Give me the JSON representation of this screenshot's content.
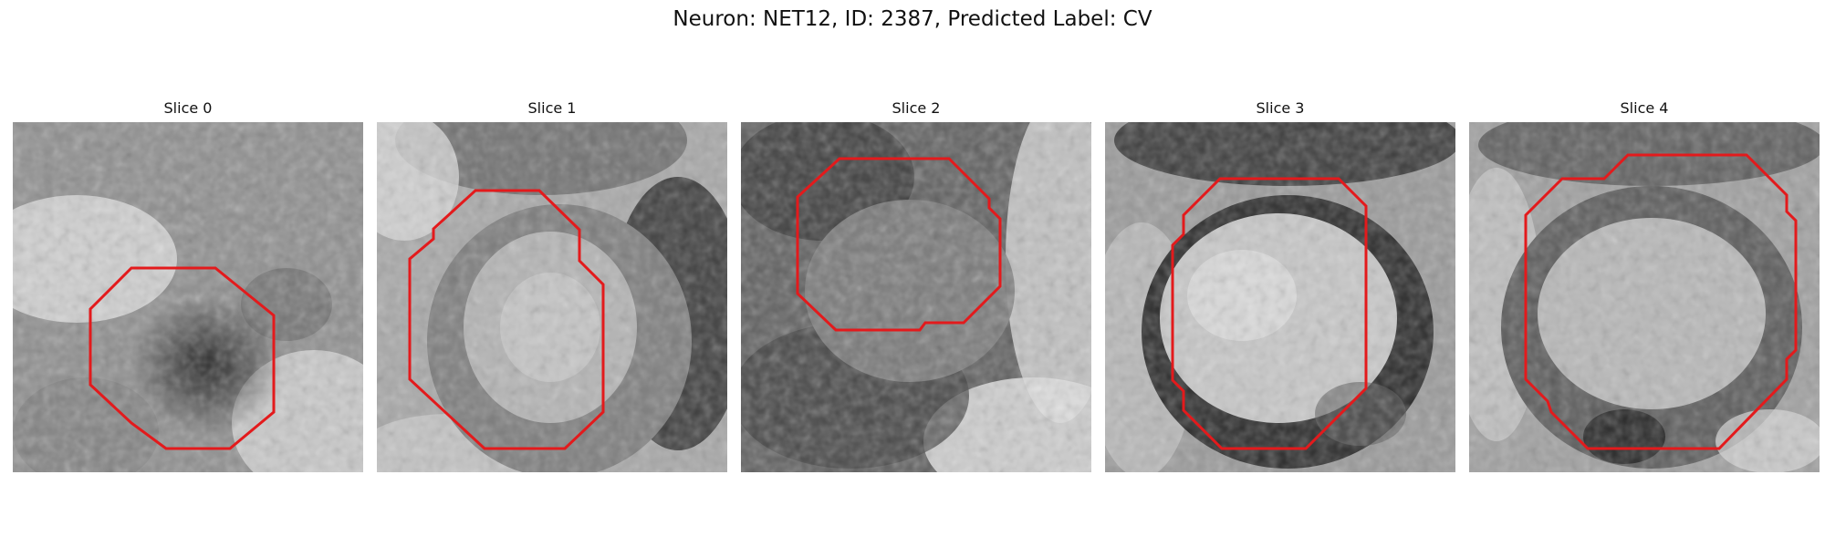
{
  "figure": {
    "title": "Neuron: NET12, ID: 2387, Predicted Label: CV"
  },
  "colors": {
    "contour": "#e31a1c",
    "background": "#ffffff"
  },
  "panels": [
    {
      "title": "Slice 0"
    },
    {
      "title": "Slice 1"
    },
    {
      "title": "Slice 2"
    },
    {
      "title": "Slice 3"
    },
    {
      "title": "Slice 4"
    }
  ]
}
